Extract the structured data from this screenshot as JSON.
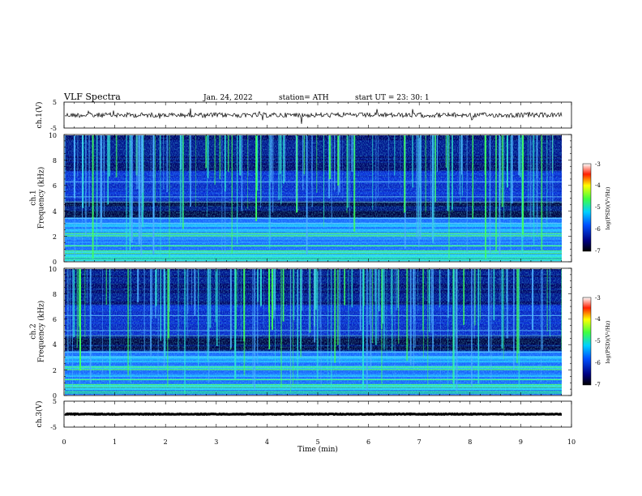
{
  "header": {
    "title": "VLF  Spectra",
    "date": "Jan. 24, 2022",
    "station": "station= ATH",
    "start": "start  UT  =    23: 30: 1"
  },
  "chart_data": [
    {
      "type": "line",
      "panel": "ch1-waveform",
      "ylabel": "ch.1(V)",
      "ylim": [
        -5,
        5
      ],
      "yticks": [
        "5",
        "-5"
      ],
      "xlim": [
        0,
        10
      ]
    },
    {
      "type": "heatmap",
      "panel": "ch1-spectrogram",
      "ylabel": "ch.1\nFrequency (kHz)",
      "ylim": [
        0,
        10
      ],
      "yticks": [
        "10",
        "8",
        "6",
        "4",
        "2",
        "0"
      ],
      "xlim": [
        0,
        10
      ],
      "colorbar": {
        "label": "log(PSD)(V²/Hz)",
        "range": [
          -7,
          -3
        ],
        "ticks": [
          "-3",
          "-4",
          "-5",
          "-6",
          "-7"
        ]
      }
    },
    {
      "type": "heatmap",
      "panel": "ch2-spectrogram",
      "ylabel": "ch.2\nFrequency (kHz)",
      "ylim": [
        0,
        10
      ],
      "yticks": [
        "10",
        "8",
        "6",
        "4",
        "2",
        "0"
      ],
      "xlim": [
        0,
        10
      ],
      "colorbar": {
        "label": "log(PSD)(V²/Hz)",
        "range": [
          -7,
          -3
        ],
        "ticks": [
          "-3",
          "-4",
          "-5",
          "-6",
          "-7"
        ]
      }
    },
    {
      "type": "line",
      "panel": "ch3-waveform",
      "ylabel": "ch.3(V)",
      "ylim": [
        -5,
        5
      ],
      "yticks": [
        "5",
        "-5"
      ],
      "xlim": [
        0,
        10
      ],
      "xlabel": "Time  (min)",
      "xticks": [
        "0",
        "1",
        "2",
        "3",
        "4",
        "5",
        "6",
        "7",
        "8",
        "9",
        "10"
      ]
    }
  ],
  "colors": {
    "waveform": "#000000",
    "spectrogram_low": "#00007a",
    "spectrogram_mid": "#1a64ff",
    "spectrogram_high": "#29e0d0",
    "spectrogram_peak": "#3cff4a"
  }
}
